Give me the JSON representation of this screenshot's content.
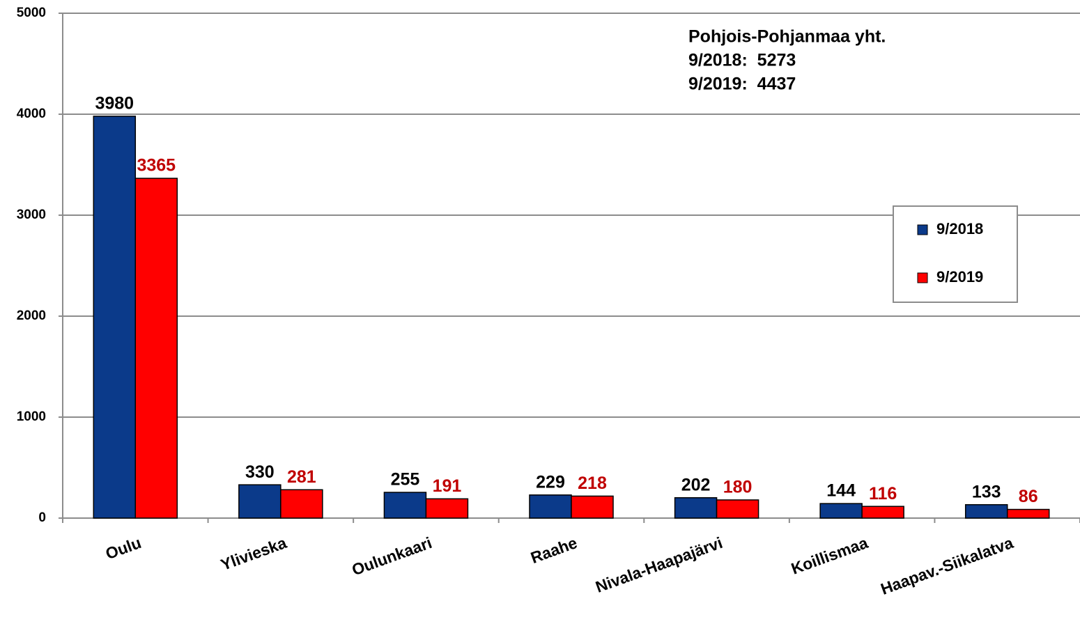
{
  "chart_data": {
    "type": "bar",
    "annotations": [
      "Pohjois-Pohjanmaa yht.",
      "9/2018:  5273",
      "9/2019:  4437"
    ],
    "categories": [
      "Oulu",
      "Ylivieska",
      "Oulunkaari",
      "Raahe",
      "Nivala-Haapajärvi",
      "Koillismaa",
      "Haapav.-Siikalatva"
    ],
    "series": [
      {
        "name": "9/2018",
        "color": "#0b3a8a",
        "label_color": "#000000",
        "values": [
          3980,
          330,
          255,
          229,
          202,
          144,
          133
        ]
      },
      {
        "name": "9/2019",
        "color": "#ff0000",
        "label_color": "#c00000",
        "values": [
          3365,
          281,
          191,
          218,
          180,
          116,
          86
        ]
      }
    ],
    "ylim": [
      0,
      5000
    ],
    "yticks": [
      0,
      1000,
      2000,
      3000,
      4000,
      5000
    ],
    "grid": true,
    "legend": "right"
  }
}
